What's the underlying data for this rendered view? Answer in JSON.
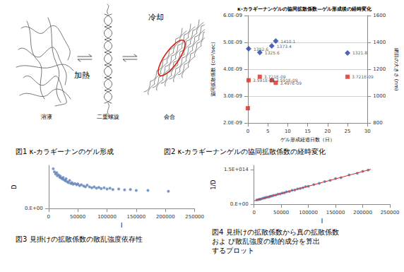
{
  "figure1": {
    "labels": [
      "溶液",
      "二重螺旋",
      "会合"
    ],
    "cooling": "冷却",
    "heating": "加熱",
    "caption": "図1 κ-カラギーナンのゲル形成"
  },
  "chart_data": [
    {
      "type": "scatter",
      "title": "κ-カラギーナンゲルの協同拡散係数—ゲル形成後の経時変化",
      "caption": "図2 κ-カラギーナンゲルの協同拡散係数の経時変化",
      "x_label": "ゲル形成経過日数（日）",
      "y_label": "協同拡散係数 (cm²/sec)",
      "y2_label": "網目の大きさ (nm)",
      "xlim": [
        0,
        30
      ],
      "xticks": [
        0,
        5,
        10,
        15,
        20,
        25,
        30
      ],
      "ylim": [
        2e-09,
        6e-09
      ],
      "yticks": [
        {
          "value": 2e-09,
          "label": "2.0E-09"
        },
        {
          "value": 3e-09,
          "label": "3.0E-09"
        },
        {
          "value": 4e-09,
          "label": "4.0E-09"
        },
        {
          "value": 5e-09,
          "label": "5.0E-09"
        },
        {
          "value": 6e-09,
          "label": "6.0E-09"
        }
      ],
      "y2lim": [
        800,
        1600
      ],
      "y2ticks": [
        800,
        1000,
        1200,
        1400,
        1600
      ],
      "grid": true,
      "data_labels": true,
      "series": [
        {
          "color": "#e0261c",
          "marker": "square",
          "x": [
            0,
            0.2,
            3,
            6,
            7,
            25
          ],
          "values": [
            2.55e-09,
            3.591e-09,
            3.721e-09,
            3.591e-09,
            3.497e-09,
            3.721e-09
          ],
          "value_labels": [
            null,
            "3.591E-09",
            "3.721E-09",
            "3.591E-09",
            "3.497E-09",
            "3.721E-09"
          ]
        },
        {
          "color": "#1f3fa6",
          "marker": "diamond",
          "axis": "y2",
          "x": [
            0.2,
            3,
            6,
            7,
            25
          ],
          "values": [
            1352.6,
            1325.6,
            1373.4,
            1410.1,
            1321.8
          ],
          "value_labels": [
            "1352.6",
            "1325.6",
            "1373.4",
            "1410.1",
            "1321.8"
          ]
        }
      ]
    },
    {
      "type": "scatter",
      "caption": "図3 見掛けの拡散係数の散乱強度依存性",
      "x_label": "I",
      "y_label": "D",
      "xlim": [
        0,
        250000
      ],
      "xticks": [
        0,
        50000,
        100000,
        150000,
        200000,
        250000
      ],
      "ylim": [
        0,
        1
      ],
      "yticks": [
        {
          "value": 0,
          "label": "0.E+00"
        }
      ],
      "grid": false,
      "series": [
        {
          "color": "#5b7fb8",
          "marker": "circle",
          "x": [
            8000,
            10000,
            12000,
            14000,
            15000,
            17000,
            19000,
            20000,
            22000,
            24000,
            25000,
            27000,
            29000,
            30000,
            32000,
            34000,
            36000,
            38000,
            40000,
            42000,
            45000,
            48000,
            50000,
            53000,
            56000,
            60000,
            63000,
            66000,
            70000,
            74000,
            78000,
            82000,
            86000,
            90000,
            95000,
            100000,
            105000,
            110000,
            120000,
            130000,
            140000,
            150000,
            170000,
            205000
          ],
          "values": [
            0.92,
            0.85,
            0.8,
            0.83,
            0.76,
            0.78,
            0.72,
            0.75,
            0.7,
            0.68,
            0.72,
            0.66,
            0.64,
            0.69,
            0.62,
            0.6,
            0.65,
            0.58,
            0.6,
            0.56,
            0.58,
            0.55,
            0.57,
            0.53,
            0.55,
            0.52,
            0.5,
            0.54,
            0.5,
            0.48,
            0.5,
            0.47,
            0.49,
            0.46,
            0.48,
            0.45,
            0.47,
            0.44,
            0.45,
            0.43,
            0.44,
            0.42,
            0.42,
            0.4
          ]
        }
      ]
    },
    {
      "type": "scatter",
      "caption": [
        "図4 見掛けの拡散係数から真の拡散係数",
        "およ び散乱強度の動的成分を算出",
        "するプロット"
      ],
      "x_label": "I",
      "y_label": "1/D",
      "xlim": [
        0,
        250000
      ],
      "xticks": [
        0,
        50000,
        100000,
        150000,
        200000,
        250000
      ],
      "ylim": [
        0,
        170000000000000.0
      ],
      "yticks": [
        {
          "value": 0,
          "label": "0.E+00"
        },
        {
          "value": 150000000000000.0,
          "label": "1.5E+014"
        }
      ],
      "grid": false,
      "series": [
        {
          "color": "#5b7fb8",
          "marker": "circle",
          "x": [
            5000,
            8000,
            10000,
            12000,
            15000,
            18000,
            20000,
            22000,
            25000,
            28000,
            30000,
            33000,
            36000,
            40000,
            44000,
            48000,
            52000,
            56000,
            60000,
            65000,
            70000,
            75000,
            80000,
            85000,
            90000,
            95000,
            100000,
            110000,
            120000,
            130000,
            140000,
            150000,
            160000,
            175000,
            190000,
            200000,
            210000
          ],
          "values": [
            19000000000000.0,
            20000000000000.0,
            22000000000000.0,
            22000000000000.0,
            25000000000000.0,
            27000000000000.0,
            27000000000000.0,
            30000000000000.0,
            31000000000000.0,
            32000000000000.0,
            35000000000000.0,
            36000000000000.0,
            39000000000000.0,
            40000000000000.0,
            44000000000000.0,
            45000000000000.0,
            49000000000000.0,
            50000000000000.0,
            54000000000000.0,
            56000000000000.0,
            61000000000000.0,
            62000000000000.0,
            67000000000000.0,
            69000000000000.0,
            72000000000000.0,
            77000000000000.0,
            78000000000000.0,
            86000000000000.0,
            91000000000000.0,
            99000000000000.0,
            104000000000000.0,
            112000000000000.0,
            116000000000000.0,
            128000000000000.0,
            135000000000000.0,
            144000000000000.0,
            149000000000000.0
          ]
        },
        {
          "type": "line",
          "color": "#e0261c",
          "marker": "none",
          "line_style": "solid",
          "x": [
            0,
            215000
          ],
          "values": [
            15000000000000.0,
            152600000000000.0
          ]
        }
      ]
    }
  ]
}
